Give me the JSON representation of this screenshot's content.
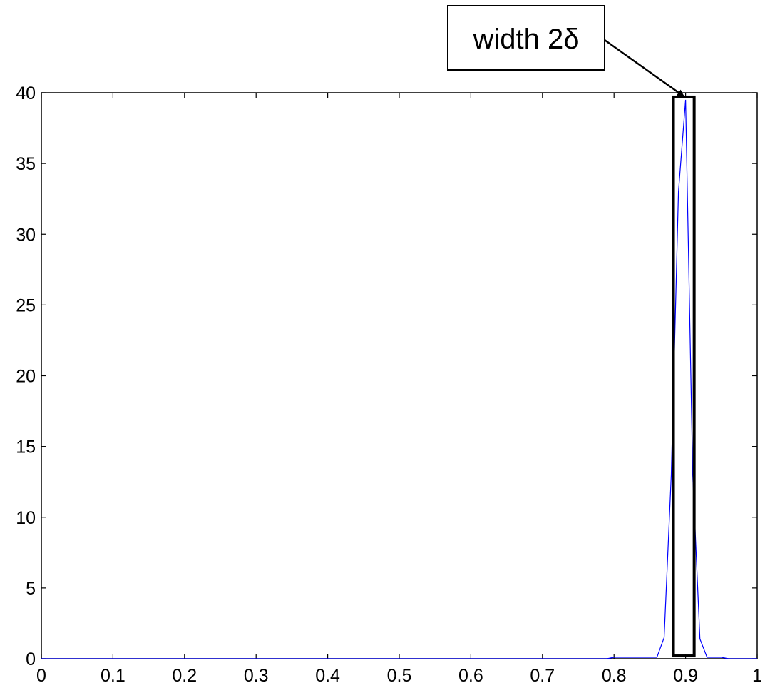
{
  "chart_data": {
    "type": "line",
    "title": "",
    "xlabel": "",
    "ylabel": "",
    "xlim": [
      0,
      1
    ],
    "ylim": [
      0,
      40
    ],
    "xticks": [
      "0",
      "0.1",
      "0.2",
      "0.3",
      "0.4",
      "0.5",
      "0.6",
      "0.7",
      "0.8",
      "0.9",
      "1"
    ],
    "yticks": [
      "0",
      "5",
      "10",
      "15",
      "20",
      "25",
      "30",
      "35",
      "40"
    ],
    "grid": false,
    "series": [
      {
        "color": "#0000ff",
        "x": [
          0,
          0.79,
          0.8,
          0.86,
          0.87,
          0.88,
          0.89,
          0.9,
          0.91,
          0.92,
          0.93,
          0.95,
          0.96,
          1
        ],
        "y": [
          0,
          0,
          0.1,
          0.1,
          1.5,
          13,
          33,
          39.5,
          13,
          1.4,
          0.1,
          0.1,
          0,
          0
        ]
      }
    ],
    "annotations": [
      {
        "text": "width 2δ",
        "kind": "boxed-label-with-arrow",
        "highlight_x_range": [
          0.883,
          0.912
        ],
        "highlight_y_range": [
          0.2,
          39.7
        ]
      }
    ]
  },
  "colors": {
    "axes": "#000000",
    "series": "#0000ff",
    "background": "#ffffff"
  }
}
